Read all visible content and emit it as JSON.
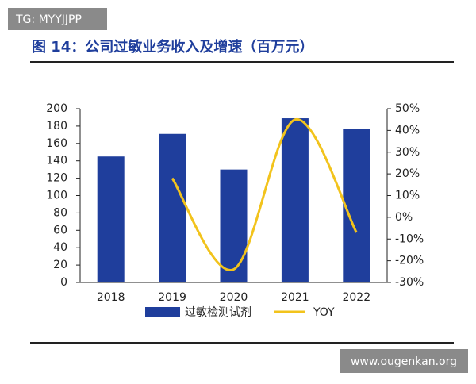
{
  "watermark_top": "TG: MYYJJPP",
  "watermark_bottom": "www.ougenkan.org",
  "chart_data": {
    "type": "bar_line",
    "title": "图 14：公司过敏业务收入及增速（百万元）",
    "categories": [
      "2018",
      "2019",
      "2020",
      "2021",
      "2022"
    ],
    "series": [
      {
        "name": "过敏检测试剂",
        "type": "bar",
        "color": "#1f3e9c",
        "values": [
          145,
          171,
          130,
          189,
          177
        ]
      },
      {
        "name": "YOY",
        "type": "line",
        "axis": "y2",
        "color": "#f2c31c",
        "values": [
          null,
          18,
          -24,
          45,
          -7
        ]
      }
    ],
    "ylim": [
      0,
      200
    ],
    "yticks": [
      0,
      20,
      40,
      60,
      80,
      100,
      120,
      140,
      160,
      180,
      200
    ],
    "y2lim": [
      -30,
      50
    ],
    "y2ticks": [
      {
        "value": -30,
        "label": "-30%"
      },
      {
        "value": -20,
        "label": "-20%"
      },
      {
        "value": -10,
        "label": "-10%"
      },
      {
        "value": 0,
        "label": "0%"
      },
      {
        "value": 10,
        "label": "10%"
      },
      {
        "value": 20,
        "label": "20%"
      },
      {
        "value": 30,
        "label": "30%"
      },
      {
        "value": 40,
        "label": "40%"
      },
      {
        "value": 50,
        "label": "50%"
      }
    ],
    "legend": "bottom"
  }
}
